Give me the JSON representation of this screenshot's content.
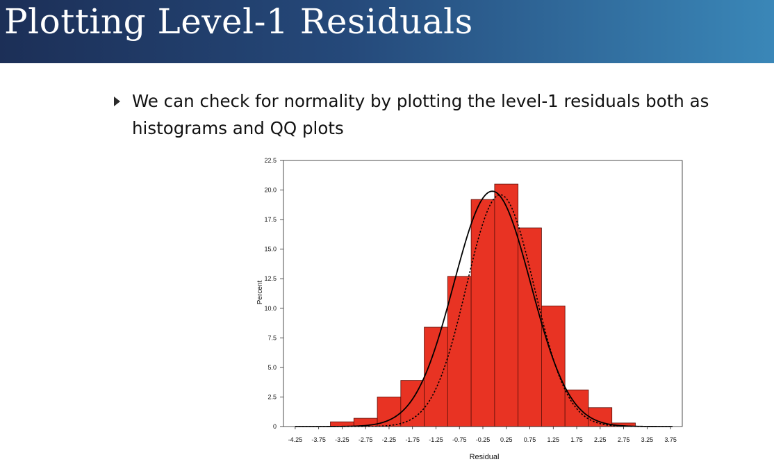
{
  "slide": {
    "title": "Plotting Level-1 Residuals",
    "bullet": "We can check for normality by plotting the level-1 residuals both as histograms and QQ plots"
  },
  "colors": {
    "title_bar_start": "#1c2f57",
    "title_bar_end": "#3a87b8",
    "bar_fill": "#e83323",
    "bar_stroke": "#5a0f08"
  },
  "chart_data": {
    "type": "bar",
    "subtype": "histogram",
    "xlabel": "Residual",
    "ylabel": "Percent",
    "xlim": [
      -4.5,
      4.0
    ],
    "ylim": [
      0,
      22.5
    ],
    "grid": false,
    "bin_width": 0.5,
    "x_ticks": [
      "-4.25",
      "-3.75",
      "-3.25",
      "-2.75",
      "-2.25",
      "-1.75",
      "-1.25",
      "-0.75",
      "-0.25",
      "0.25",
      "0.75",
      "1.25",
      "1.75",
      "2.25",
      "2.75",
      "3.25",
      "3.75"
    ],
    "y_ticks": [
      "0",
      "2.5",
      "5.0",
      "7.5",
      "10.0",
      "12.5",
      "15.0",
      "17.5",
      "20.0",
      "22.5"
    ],
    "bins": [
      {
        "center": -4.25,
        "value": 0
      },
      {
        "center": -3.75,
        "value": 0
      },
      {
        "center": -3.25,
        "value": 0.4
      },
      {
        "center": -2.75,
        "value": 0.7
      },
      {
        "center": -2.25,
        "value": 2.5
      },
      {
        "center": -1.75,
        "value": 3.9
      },
      {
        "center": -1.25,
        "value": 8.4
      },
      {
        "center": -0.75,
        "value": 12.7
      },
      {
        "center": -0.25,
        "value": 19.2
      },
      {
        "center": 0.25,
        "value": 20.5
      },
      {
        "center": 0.75,
        "value": 16.8
      },
      {
        "center": 1.25,
        "value": 10.2
      },
      {
        "center": 1.75,
        "value": 3.1
      },
      {
        "center": 2.25,
        "value": 1.6
      },
      {
        "center": 2.75,
        "value": 0.3
      },
      {
        "center": 3.25,
        "value": 0
      },
      {
        "center": 3.75,
        "value": 0
      }
    ],
    "curves": [
      {
        "style": "solid",
        "mean": -0.05,
        "sd": 0.82,
        "peak": 19.9
      },
      {
        "style": "dotted",
        "mean": 0.12,
        "sd": 0.72,
        "peak": 19.6
      }
    ]
  }
}
